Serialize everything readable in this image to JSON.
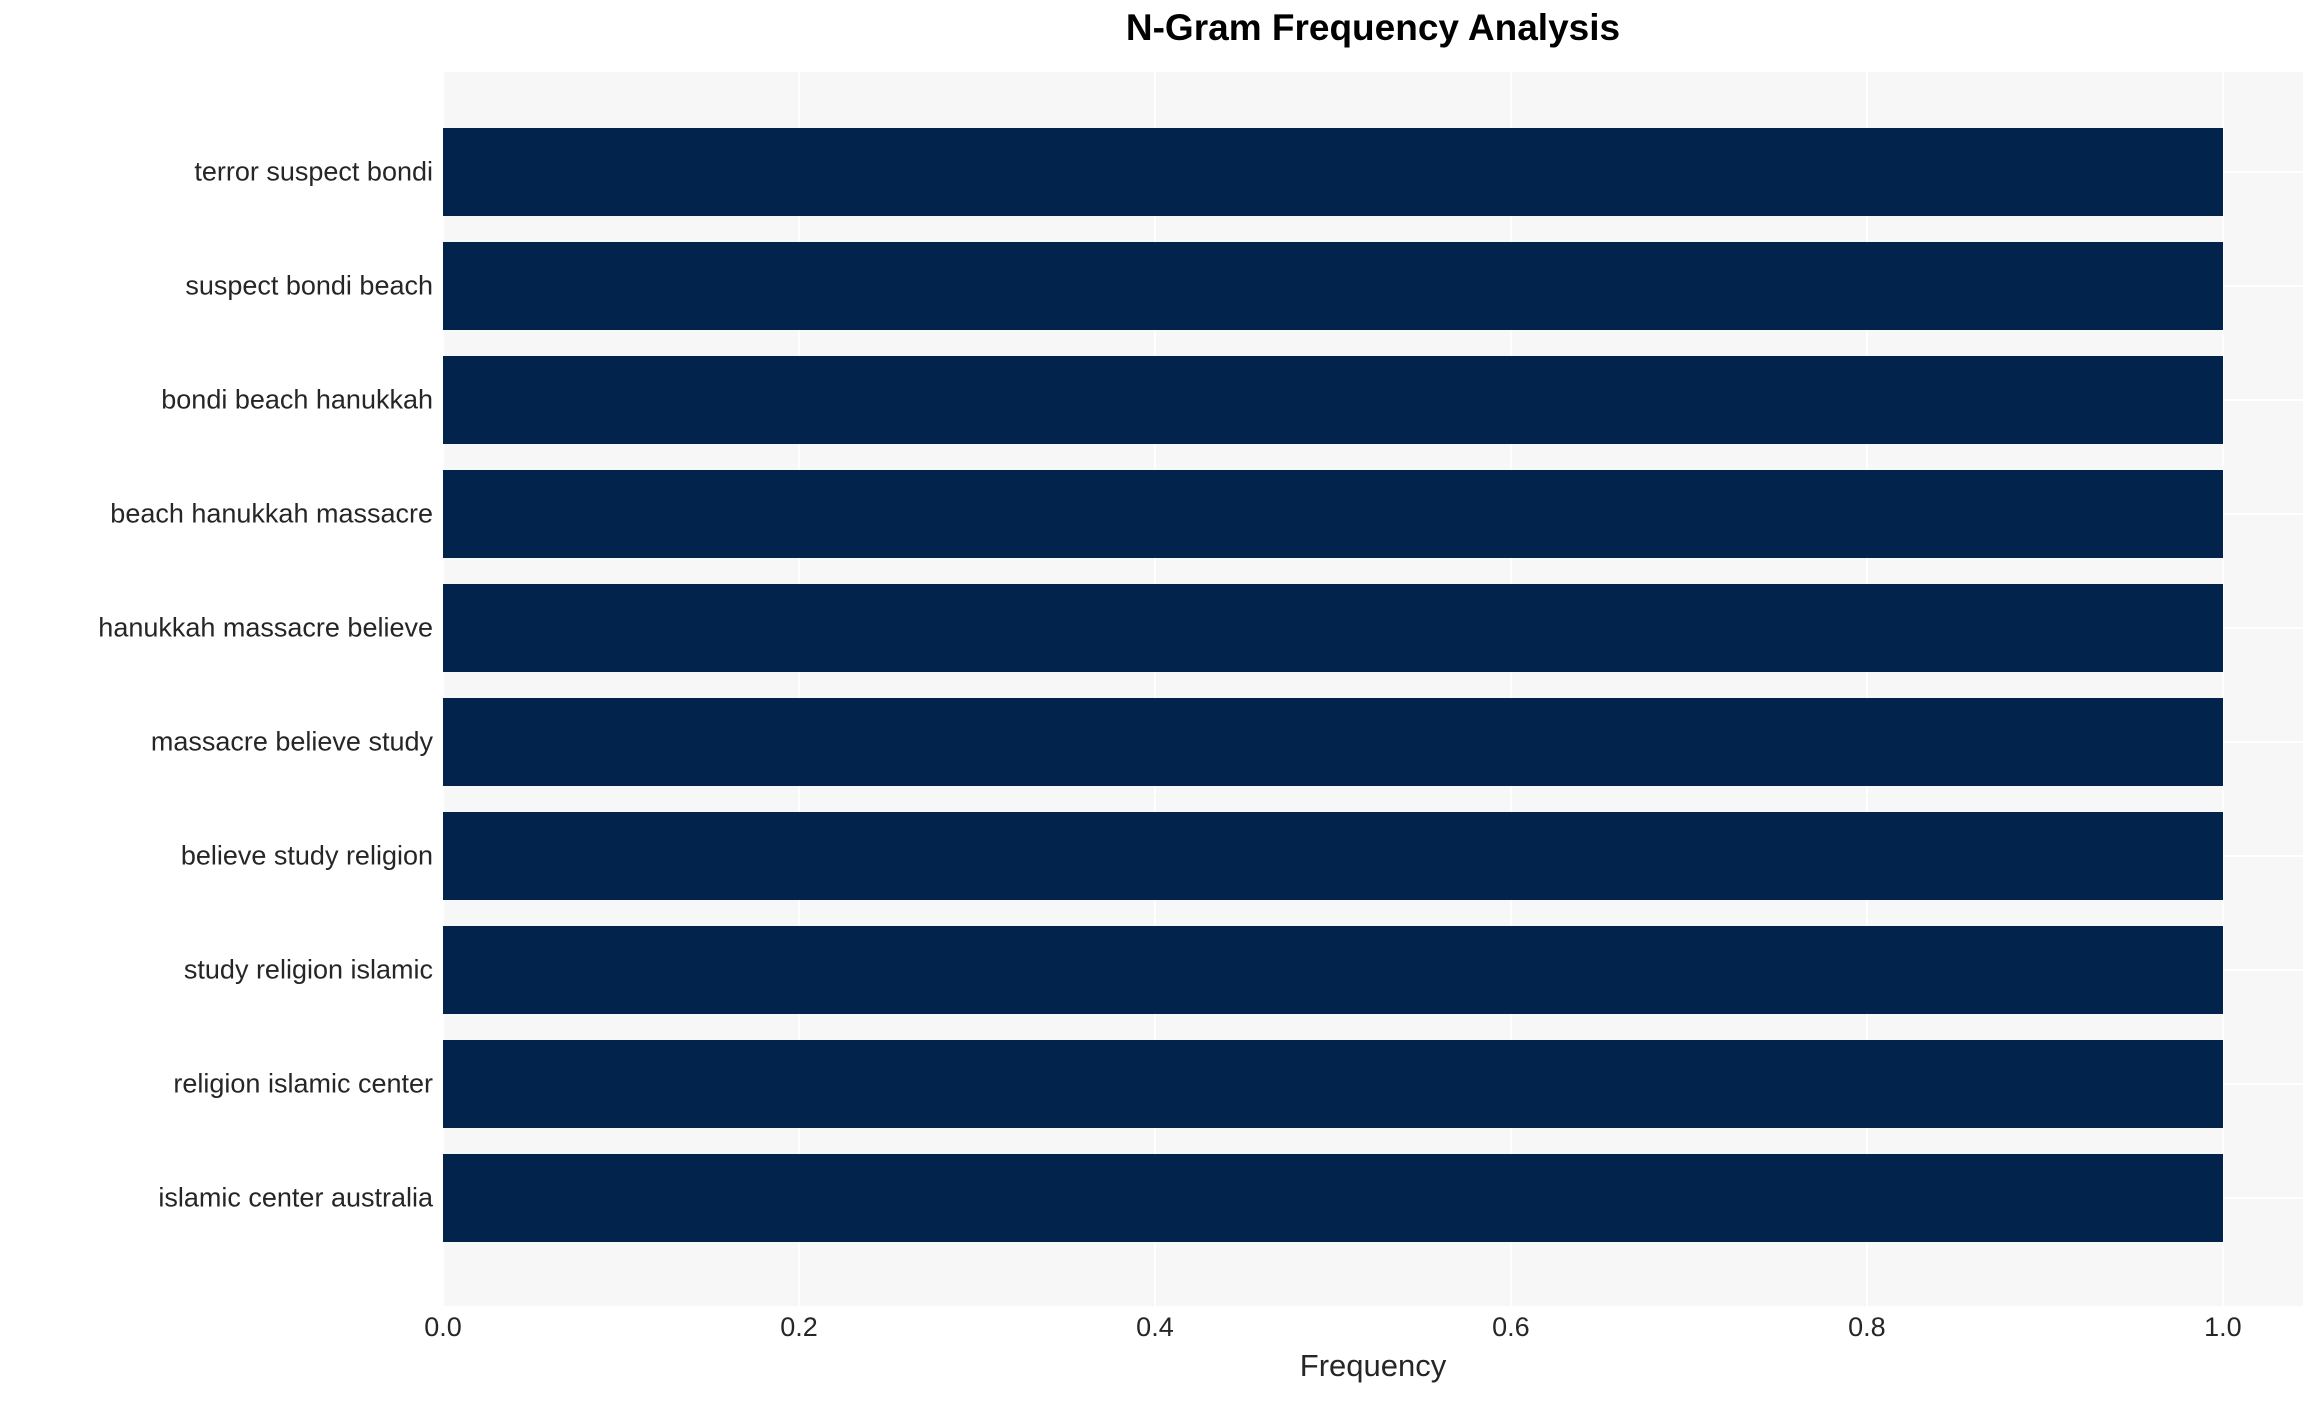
{
  "page": {
    "background": "#ffffff"
  },
  "chart_data": {
    "type": "bar",
    "orientation": "horizontal",
    "title": "N-Gram Frequency Analysis",
    "xlabel": "Frequency",
    "ylabel": "",
    "categories": [
      "terror suspect bondi",
      "suspect bondi beach",
      "bondi beach hanukkah",
      "beach hanukkah massacre",
      "hanukkah massacre believe",
      "massacre believe study",
      "believe study religion",
      "study religion islamic",
      "religion islamic center",
      "islamic center australia"
    ],
    "values": [
      1.0,
      1.0,
      1.0,
      1.0,
      1.0,
      1.0,
      1.0,
      1.0,
      1.0,
      1.0
    ],
    "x_ticks": [
      0.0,
      0.2,
      0.4,
      0.6,
      0.8,
      1.0
    ],
    "x_tick_labels": [
      "0.0",
      "0.2",
      "0.4",
      "0.6",
      "0.8",
      "1.0"
    ],
    "xlim": [
      0,
      1.045
    ],
    "grid": true,
    "legend": "none",
    "colors": {
      "bar": "#02234c",
      "plot_background": "#f7f7f8",
      "gridline": "#ffffff",
      "tick_text": "#262626",
      "title_text": "#000000"
    }
  }
}
